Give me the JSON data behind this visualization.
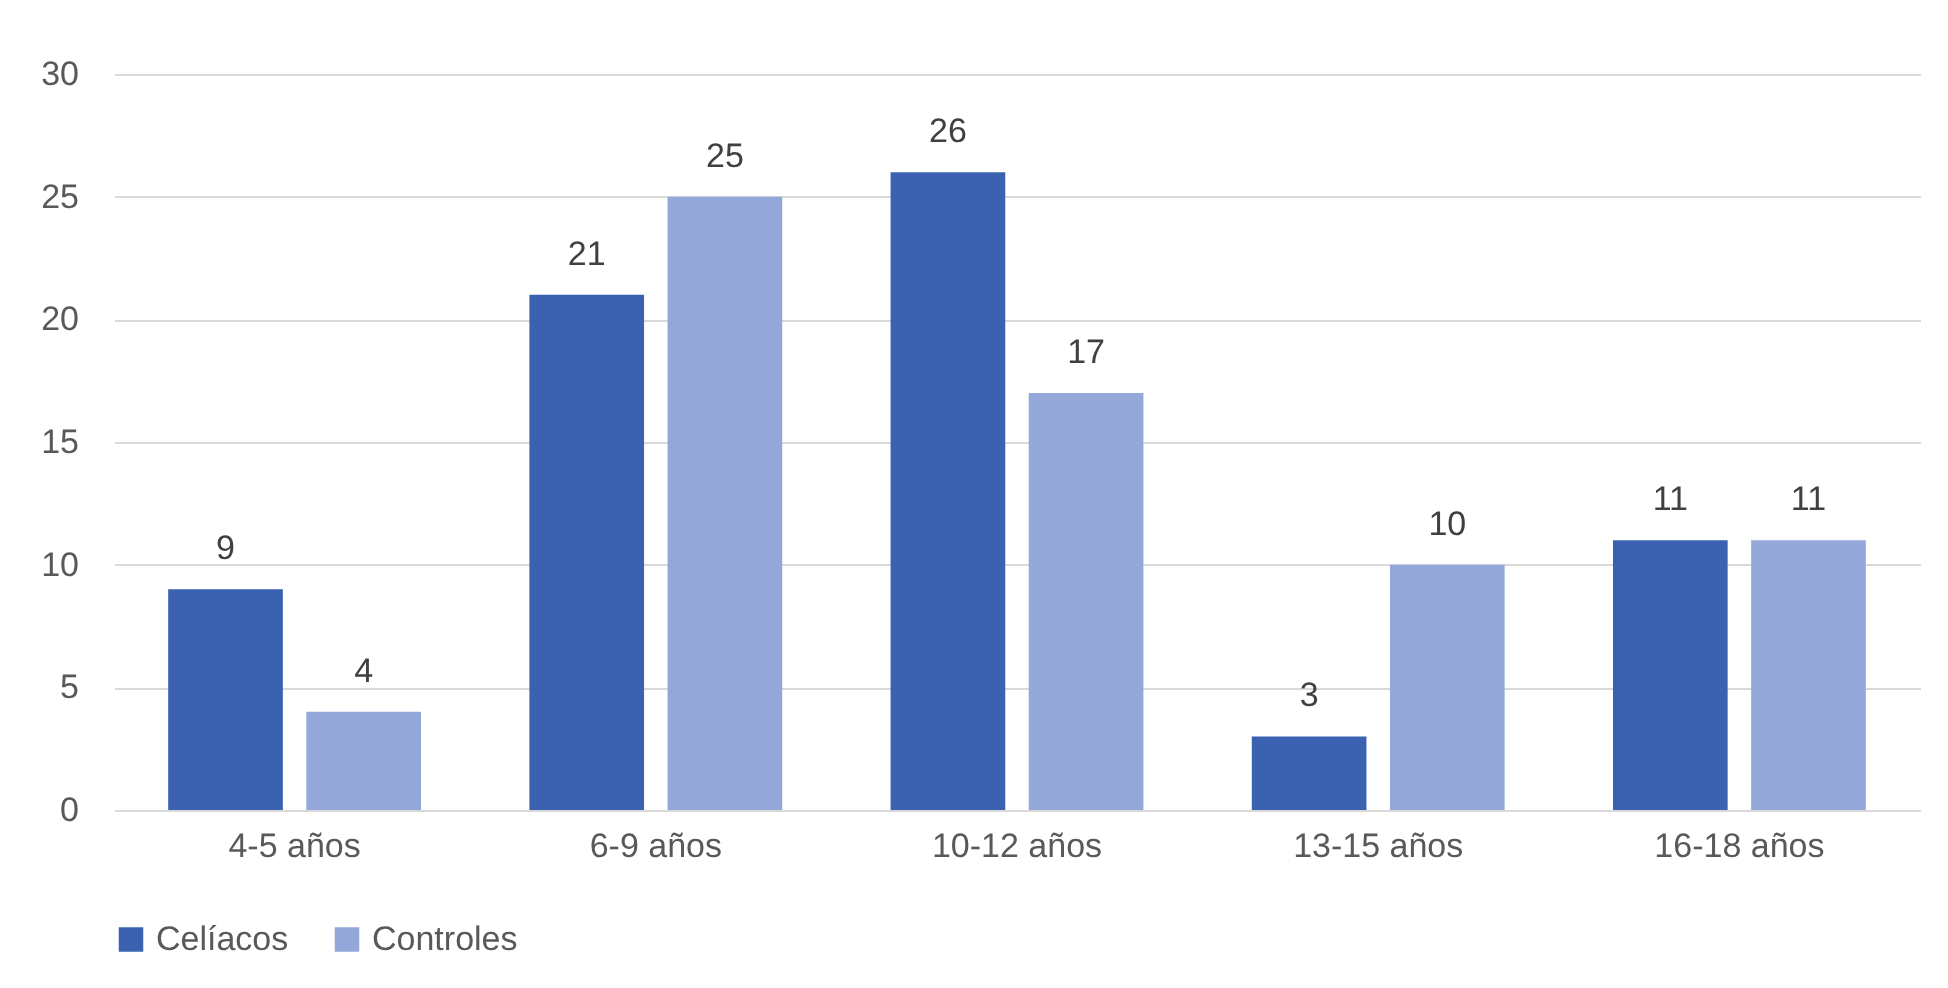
{
  "chart_data": {
    "type": "bar",
    "categories": [
      "4-5 años",
      "6-9 años",
      "10-12 años",
      "13-15 años",
      "16-18 años"
    ],
    "series": [
      {
        "name": "Celíacos",
        "color": "#3a62b0",
        "values": [
          9,
          21,
          26,
          3,
          11
        ]
      },
      {
        "name": "Controles",
        "color": "#93a8d8",
        "values": [
          4,
          25,
          17,
          10,
          11
        ]
      }
    ],
    "ylim": [
      0,
      30
    ],
    "yticks": [
      0,
      5,
      10,
      15,
      20,
      25,
      30
    ],
    "grid": "y",
    "legend": "bottom",
    "data_labels": true
  }
}
